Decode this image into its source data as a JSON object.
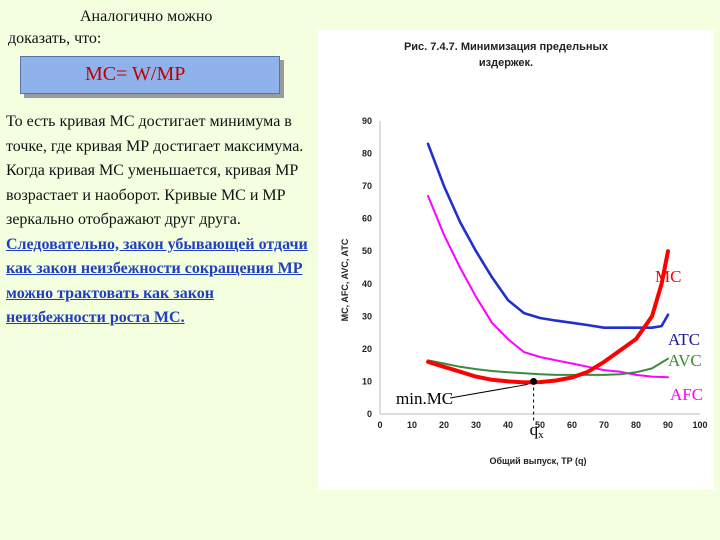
{
  "intro": {
    "line1": "Аналогично можно",
    "line2": "доказать, что:"
  },
  "formula": "MC= W/MP",
  "paragraph": {
    "plain": "То есть кривая МС достигает минимума в точке, где кривая МР достигает максимума. Когда кривая МС уменьшается, кривая МР возрастает и наоборот. Кривые МС и МР зеркально отображают друг друга. ",
    "emphasis": "Следовательно, закон убывающей отдачи как закон неизбежности сокращения МР можно трактовать как закон неизбежности роста МС."
  },
  "colors": {
    "mc": "#ff0000",
    "atc": "#1f2fd0",
    "afc": "#ff00ff",
    "avc": "#3c8a3c"
  },
  "chart_data": {
    "type": "line",
    "title_line1": "Рис. 7.4.7. Минимизация предельных",
    "title_line2": "издержек.",
    "xlabel": "Общий выпуск, TP (q)",
    "ylabel": "MC, AFC, AVC, ATC",
    "xlim": [
      0,
      100
    ],
    "ylim": [
      0,
      90
    ],
    "xticks": [
      "0",
      "10",
      "20",
      "30",
      "40",
      "50",
      "60",
      "70",
      "80",
      "90",
      "100"
    ],
    "yticks": [
      "0",
      "10",
      "20",
      "30",
      "40",
      "50",
      "60",
      "70",
      "80",
      "90"
    ],
    "series": [
      {
        "name": "MC",
        "color": "#ff0000",
        "width": 4,
        "x": [
          15,
          20,
          25,
          30,
          35,
          40,
          45,
          50,
          55,
          60,
          65,
          70,
          75,
          80,
          85,
          88,
          90
        ],
        "y": [
          16,
          14.5,
          13,
          11.5,
          10.5,
          10,
          9.7,
          9.8,
          10.3,
          11.2,
          13,
          16,
          19.5,
          23,
          30,
          40,
          50
        ]
      },
      {
        "name": "ATC",
        "color": "#1f2fd0",
        "width": 2.6,
        "x": [
          15,
          20,
          25,
          30,
          35,
          40,
          45,
          50,
          55,
          60,
          65,
          70,
          75,
          80,
          85,
          88,
          90
        ],
        "y": [
          83,
          70,
          59,
          50,
          42,
          35,
          31,
          29.5,
          28.7,
          28,
          27.3,
          26.5,
          26.5,
          26.5,
          26.5,
          27,
          30.5
        ]
      },
      {
        "name": "AFC",
        "color": "#ff00ff",
        "width": 2,
        "x": [
          15,
          20,
          25,
          30,
          35,
          40,
          45,
          50,
          55,
          60,
          65,
          70,
          75,
          80,
          85,
          90
        ],
        "y": [
          67,
          55,
          45,
          36,
          28,
          23,
          19,
          17.5,
          16.5,
          15.5,
          14.5,
          13.5,
          13,
          12,
          11.5,
          11.3
        ]
      },
      {
        "name": "AVC",
        "color": "#3c8a3c",
        "width": 2,
        "x": [
          15,
          20,
          25,
          30,
          35,
          40,
          45,
          50,
          55,
          60,
          65,
          70,
          75,
          80,
          85,
          90
        ],
        "y": [
          16.5,
          15.5,
          14.5,
          13.8,
          13.2,
          12.8,
          12.5,
          12.2,
          12,
          12,
          12,
          12,
          12.2,
          12.8,
          14,
          17
        ]
      }
    ],
    "point": {
      "x": 48,
      "y": 10
    },
    "labels": {
      "mc": "MC",
      "atc": "ATC",
      "avc": "AVC",
      "afc": "AFC",
      "minmc": "min.MC",
      "qx": "qx",
      "qx_base": "q",
      "qx_sub": "x"
    }
  }
}
